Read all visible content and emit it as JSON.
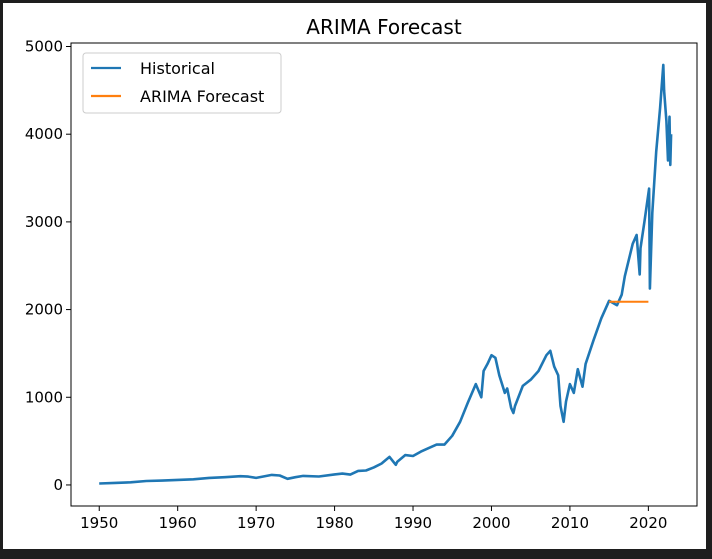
{
  "chart_data": {
    "type": "line",
    "title": "ARIMA Forecast",
    "xlabel": "",
    "ylabel": "",
    "xlim": [
      1946.4,
      2026.2
    ],
    "ylim": [
      -240,
      5040
    ],
    "xticks": [
      1950,
      1960,
      1970,
      1980,
      1990,
      2000,
      2010,
      2020
    ],
    "yticks": [
      0,
      1000,
      2000,
      3000,
      4000,
      5000
    ],
    "grid": false,
    "legend_position": "top-left",
    "series": [
      {
        "name": "Historical",
        "color": "#1f77b4",
        "points": [
          [
            1950,
            17
          ],
          [
            1952,
            24
          ],
          [
            1954,
            30
          ],
          [
            1956,
            45
          ],
          [
            1958,
            50
          ],
          [
            1960,
            58
          ],
          [
            1962,
            65
          ],
          [
            1964,
            80
          ],
          [
            1966,
            88
          ],
          [
            1968,
            100
          ],
          [
            1969,
            95
          ],
          [
            1970,
            80
          ],
          [
            1971,
            98
          ],
          [
            1972,
            115
          ],
          [
            1973,
            108
          ],
          [
            1974,
            70
          ],
          [
            1975,
            88
          ],
          [
            1976,
            103
          ],
          [
            1978,
            96
          ],
          [
            1980,
            120
          ],
          [
            1981,
            130
          ],
          [
            1982,
            118
          ],
          [
            1983,
            160
          ],
          [
            1984,
            165
          ],
          [
            1985,
            200
          ],
          [
            1986,
            245
          ],
          [
            1987,
            320
          ],
          [
            1987.8,
            230
          ],
          [
            1988,
            265
          ],
          [
            1989,
            340
          ],
          [
            1990,
            330
          ],
          [
            1991,
            380
          ],
          [
            1992,
            420
          ],
          [
            1993,
            460
          ],
          [
            1994,
            460
          ],
          [
            1995,
            560
          ],
          [
            1996,
            720
          ],
          [
            1997,
            940
          ],
          [
            1998,
            1150
          ],
          [
            1998.7,
            1000
          ],
          [
            1999,
            1300
          ],
          [
            1999.5,
            1380
          ],
          [
            2000,
            1480
          ],
          [
            2000.5,
            1450
          ],
          [
            2001,
            1250
          ],
          [
            2001.7,
            1050
          ],
          [
            2002,
            1100
          ],
          [
            2002.5,
            880
          ],
          [
            2002.8,
            820
          ],
          [
            2003,
            900
          ],
          [
            2004,
            1130
          ],
          [
            2005,
            1200
          ],
          [
            2006,
            1300
          ],
          [
            2007,
            1480
          ],
          [
            2007.5,
            1530
          ],
          [
            2008,
            1350
          ],
          [
            2008.5,
            1250
          ],
          [
            2008.8,
            900
          ],
          [
            2009.2,
            720
          ],
          [
            2009.5,
            950
          ],
          [
            2010,
            1150
          ],
          [
            2010.5,
            1050
          ],
          [
            2011,
            1320
          ],
          [
            2011.6,
            1120
          ],
          [
            2012,
            1380
          ],
          [
            2013,
            1650
          ],
          [
            2014,
            1900
          ],
          [
            2015,
            2100
          ],
          [
            2016,
            2050
          ],
          [
            2016.6,
            2170
          ],
          [
            2017,
            2380
          ],
          [
            2018,
            2750
          ],
          [
            2018.5,
            2850
          ],
          [
            2018.9,
            2400
          ],
          [
            2019,
            2700
          ],
          [
            2019.5,
            3000
          ],
          [
            2020.1,
            3380
          ],
          [
            2020.2,
            2240
          ],
          [
            2020.5,
            3100
          ],
          [
            2021,
            3800
          ],
          [
            2021.5,
            4300
          ],
          [
            2021.9,
            4790
          ],
          [
            2022,
            4500
          ],
          [
            2022.3,
            4150
          ],
          [
            2022.5,
            3700
          ],
          [
            2022.7,
            4200
          ],
          [
            2022.8,
            3650
          ],
          [
            2022.9,
            4000
          ]
        ]
      },
      {
        "name": "ARIMA Forecast",
        "color": "#ff7f0e",
        "points": [
          [
            2015,
            2090
          ],
          [
            2020,
            2090
          ]
        ]
      }
    ]
  }
}
